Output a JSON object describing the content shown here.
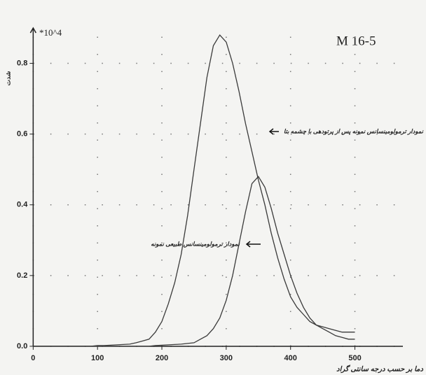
{
  "chart_data": {
    "type": "line",
    "title": "M 16-5",
    "y_unit": "*10^4",
    "y_label": "شدت",
    "x_label": "دما بر حسب درجه سانتی گراد",
    "x": [
      0,
      10,
      20,
      30,
      40,
      50,
      60,
      70,
      80,
      90,
      100,
      110,
      120,
      130,
      140,
      150,
      160,
      170,
      180,
      190,
      200,
      210,
      220,
      230,
      240,
      250,
      260,
      270,
      280,
      290,
      300,
      310,
      320,
      330,
      340,
      350,
      360,
      370,
      380,
      390,
      400,
      410,
      420,
      430,
      440,
      450,
      460,
      470,
      480,
      490,
      500
    ],
    "series": [
      {
        "name": "نمودار ترمولومینسانس نمونه پس از پرتودهی با چشمه بتا",
        "color": "#3a3a3a",
        "values": [
          0,
          0,
          0,
          0,
          0,
          0,
          0,
          0,
          0,
          0,
          0.002,
          0.002,
          0.003,
          0.004,
          0.005,
          0.006,
          0.01,
          0.015,
          0.02,
          0.04,
          0.07,
          0.12,
          0.18,
          0.26,
          0.37,
          0.5,
          0.63,
          0.76,
          0.85,
          0.88,
          0.86,
          0.8,
          0.72,
          0.63,
          0.55,
          0.47,
          0.4,
          0.32,
          0.25,
          0.19,
          0.14,
          0.11,
          0.09,
          0.07,
          0.06,
          0.055,
          0.05,
          0.045,
          0.04,
          0.04,
          0.04
        ]
      },
      {
        "name": "نمودار ترمولومینسانس طبیعی نمونه",
        "color": "#3a3a3a",
        "values": [
          0,
          0,
          0,
          0,
          0,
          0,
          0,
          0,
          0,
          0,
          0,
          0,
          0,
          0,
          0,
          0,
          0,
          0,
          0,
          0.002,
          0.003,
          0.004,
          0.005,
          0.006,
          0.008,
          0.01,
          0.02,
          0.03,
          0.05,
          0.08,
          0.13,
          0.2,
          0.29,
          0.38,
          0.46,
          0.48,
          0.45,
          0.39,
          0.32,
          0.26,
          0.2,
          0.15,
          0.11,
          0.08,
          0.06,
          0.05,
          0.04,
          0.03,
          0.025,
          0.02,
          0.02
        ]
      }
    ],
    "xlim": [
      -8,
      580
    ],
    "ylim": [
      -0.01,
      0.9
    ],
    "xticks": [
      0,
      100,
      200,
      300,
      400,
      500
    ],
    "yticks": [
      {
        "value": 0,
        "label": "0.0"
      },
      0.2,
      0.4,
      0.6,
      0.8
    ],
    "grid": true
  }
}
